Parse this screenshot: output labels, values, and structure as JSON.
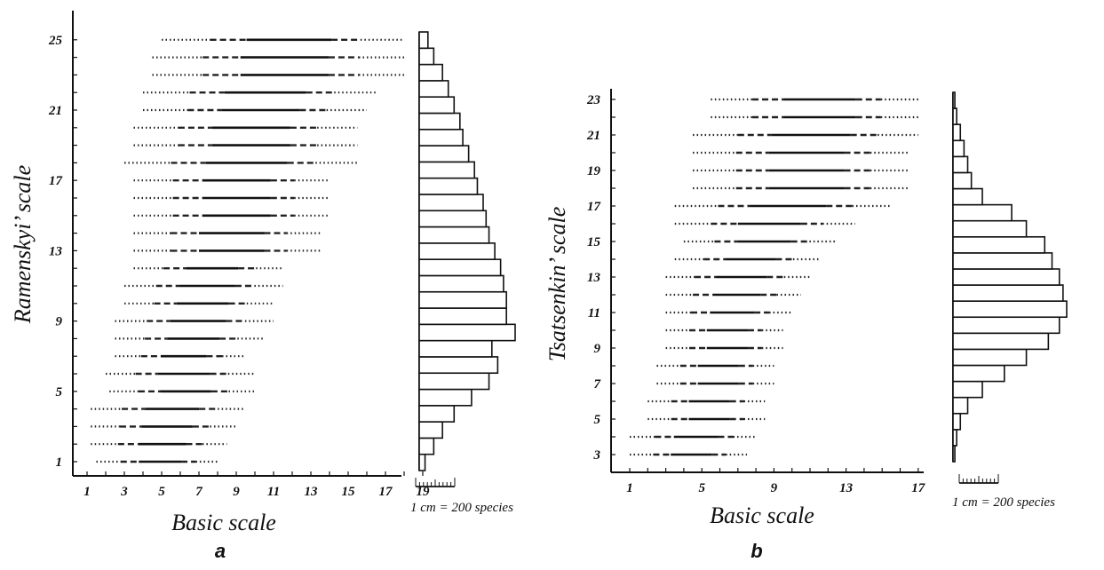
{
  "chart_data": [
    {
      "type": "range",
      "panel_label": "a",
      "xlabel": "Basic scale",
      "ylabel": "Ramenskyi’ scale",
      "xlim": [
        0,
        19
      ],
      "ylim": [
        0,
        26
      ],
      "x_ticks": [
        "1",
        "3",
        "5",
        "7",
        "9",
        "11",
        "13",
        "15",
        "17",
        "19"
      ],
      "y_ticks": [
        "1",
        "5",
        "9",
        "13",
        "17",
        "21",
        "25"
      ],
      "rows": [
        {
          "y": 1,
          "x_min": 1.5,
          "x_max": 8.0
        },
        {
          "y": 2,
          "x_min": 1.2,
          "x_max": 8.5
        },
        {
          "y": 3,
          "x_min": 1.2,
          "x_max": 9.0
        },
        {
          "y": 4,
          "x_min": 1.2,
          "x_max": 9.5
        },
        {
          "y": 5,
          "x_min": 2.2,
          "x_max": 10.0
        },
        {
          "y": 6,
          "x_min": 2.0,
          "x_max": 10.0
        },
        {
          "y": 7,
          "x_min": 2.5,
          "x_max": 9.5
        },
        {
          "y": 8,
          "x_min": 2.5,
          "x_max": 10.5
        },
        {
          "y": 9,
          "x_min": 2.5,
          "x_max": 11.0
        },
        {
          "y": 10,
          "x_min": 3.0,
          "x_max": 11.0
        },
        {
          "y": 11,
          "x_min": 3.0,
          "x_max": 11.5
        },
        {
          "y": 12,
          "x_min": 3.5,
          "x_max": 11.5
        },
        {
          "y": 13,
          "x_min": 3.5,
          "x_max": 13.5
        },
        {
          "y": 14,
          "x_min": 3.5,
          "x_max": 13.5
        },
        {
          "y": 15,
          "x_min": 3.5,
          "x_max": 14.0
        },
        {
          "y": 16,
          "x_min": 3.5,
          "x_max": 14.0
        },
        {
          "y": 17,
          "x_min": 3.5,
          "x_max": 14.0
        },
        {
          "y": 18,
          "x_min": 3.0,
          "x_max": 15.5
        },
        {
          "y": 19,
          "x_min": 3.5,
          "x_max": 15.5
        },
        {
          "y": 20,
          "x_min": 3.5,
          "x_max": 15.5
        },
        {
          "y": 21,
          "x_min": 4.0,
          "x_max": 16.0
        },
        {
          "y": 22,
          "x_min": 4.0,
          "x_max": 16.5
        },
        {
          "y": 23,
          "x_min": 4.5,
          "x_max": 18.0
        },
        {
          "y": 24,
          "x_min": 4.5,
          "x_max": 18.0
        },
        {
          "y": 25,
          "x_min": 5.0,
          "x_max": 18.0
        }
      ],
      "histogram": {
        "note": "1 cm = 200 species",
        "values": [
          20,
          50,
          80,
          120,
          180,
          240,
          270,
          250,
          330,
          300,
          300,
          290,
          280,
          260,
          240,
          230,
          220,
          200,
          190,
          170,
          150,
          140,
          120,
          100,
          80,
          50,
          30
        ]
      }
    },
    {
      "type": "range",
      "panel_label": "b",
      "xlabel": "Basic scale",
      "ylabel": "Tsatsenkin’ scale",
      "xlim": [
        0,
        18
      ],
      "ylim": [
        2,
        23.5
      ],
      "x_ticks": [
        "1",
        "5",
        "9",
        "13",
        "17"
      ],
      "y_ticks": [
        "3",
        "5",
        "7",
        "9",
        "11",
        "13",
        "15",
        "17",
        "19",
        "21",
        "23"
      ],
      "rows": [
        {
          "y": 3,
          "x_min": 1.0,
          "x_max": 7.5
        },
        {
          "y": 4,
          "x_min": 1.0,
          "x_max": 8.0
        },
        {
          "y": 5,
          "x_min": 2.0,
          "x_max": 8.5
        },
        {
          "y": 6,
          "x_min": 2.0,
          "x_max": 8.5
        },
        {
          "y": 7,
          "x_min": 2.5,
          "x_max": 9.0
        },
        {
          "y": 8,
          "x_min": 2.5,
          "x_max": 9.0
        },
        {
          "y": 9,
          "x_min": 3.0,
          "x_max": 9.5
        },
        {
          "y": 10,
          "x_min": 3.0,
          "x_max": 9.5
        },
        {
          "y": 11,
          "x_min": 3.0,
          "x_max": 10.0
        },
        {
          "y": 12,
          "x_min": 3.0,
          "x_max": 10.5
        },
        {
          "y": 13,
          "x_min": 3.0,
          "x_max": 11.0
        },
        {
          "y": 14,
          "x_min": 3.5,
          "x_max": 11.5
        },
        {
          "y": 15,
          "x_min": 4.0,
          "x_max": 12.5
        },
        {
          "y": 16,
          "x_min": 3.5,
          "x_max": 13.5
        },
        {
          "y": 17,
          "x_min": 3.5,
          "x_max": 15.5
        },
        {
          "y": 18,
          "x_min": 4.5,
          "x_max": 16.5
        },
        {
          "y": 19,
          "x_min": 4.5,
          "x_max": 16.5
        },
        {
          "y": 20,
          "x_min": 4.5,
          "x_max": 16.5
        },
        {
          "y": 21,
          "x_min": 4.5,
          "x_max": 17.0
        },
        {
          "y": 22,
          "x_min": 5.5,
          "x_max": 17.0
        },
        {
          "y": 23,
          "x_min": 5.5,
          "x_max": 17.0
        }
      ],
      "histogram": {
        "note": "1 cm = 200 species",
        "values": [
          5,
          10,
          20,
          40,
          80,
          140,
          200,
          260,
          290,
          310,
          300,
          290,
          270,
          250,
          200,
          160,
          80,
          50,
          40,
          30,
          20,
          10,
          5
        ]
      }
    }
  ]
}
